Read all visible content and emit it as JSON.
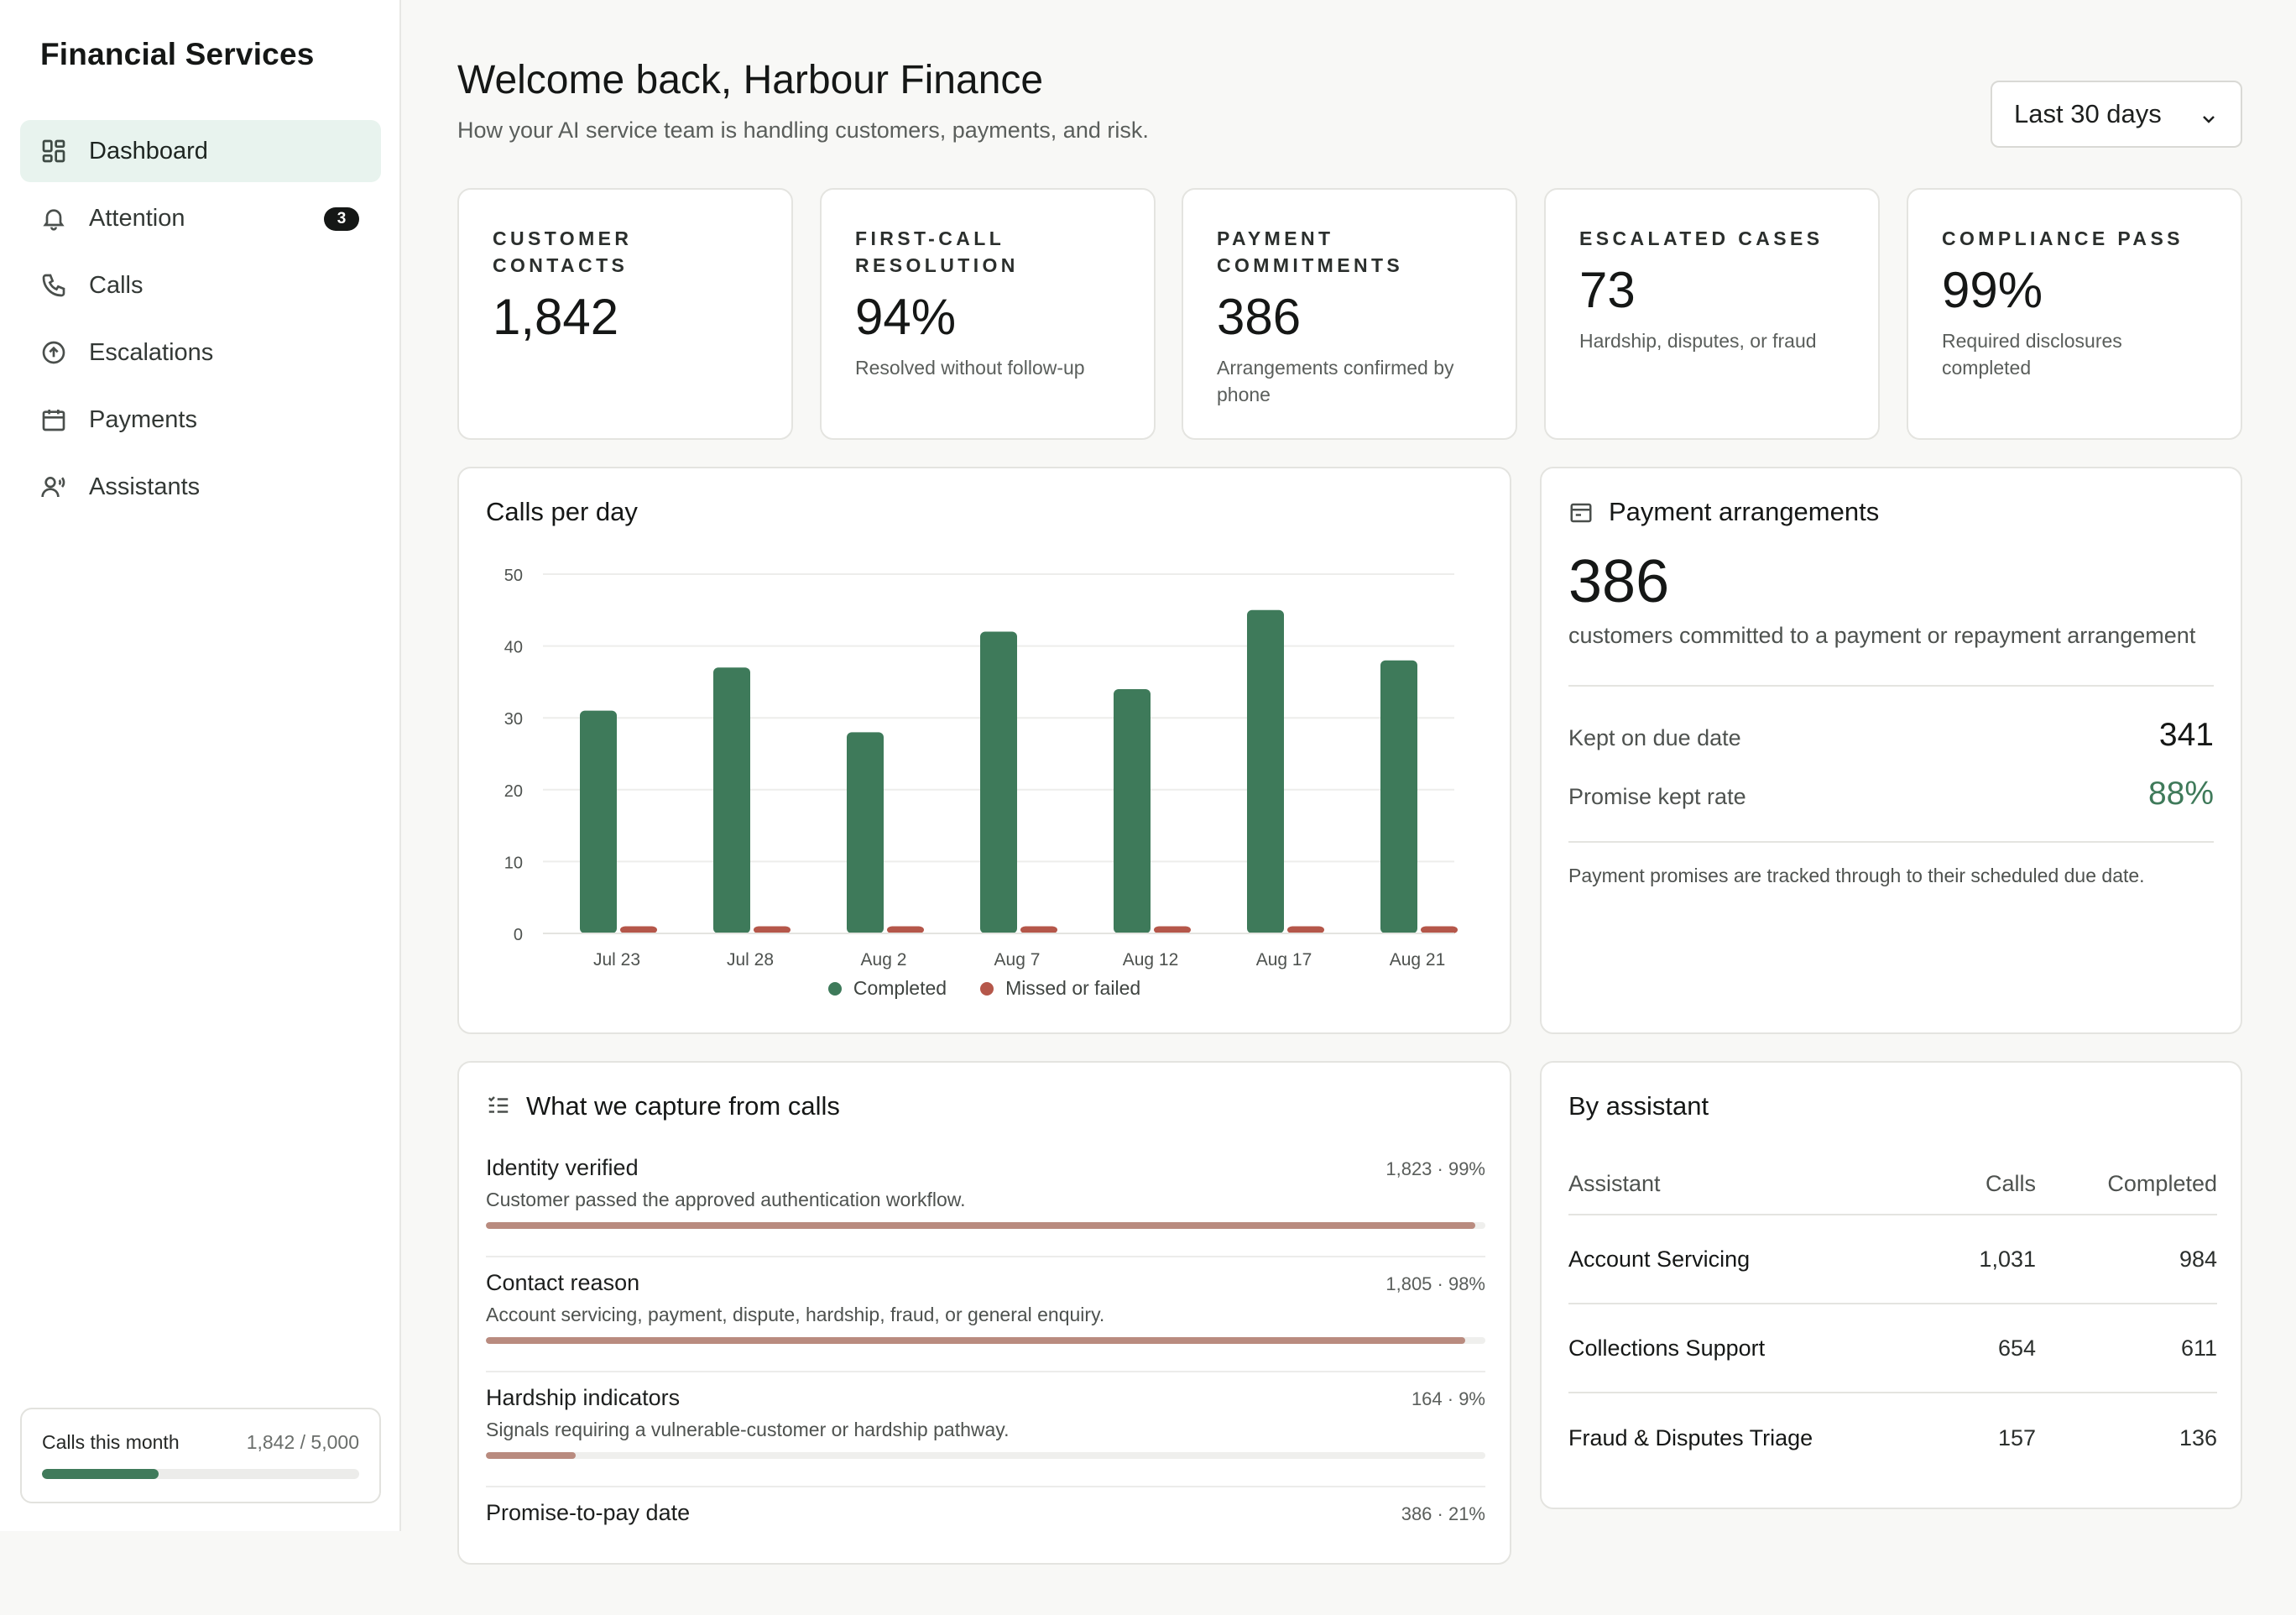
{
  "sidebar": {
    "brand": "Financial Services",
    "items": [
      {
        "label": "Dashboard",
        "icon": "dashboard-icon",
        "active": true
      },
      {
        "label": "Attention",
        "icon": "bell-icon",
        "badge": "3"
      },
      {
        "label": "Calls",
        "icon": "phone-icon"
      },
      {
        "label": "Escalations",
        "icon": "arrow-up-circle-icon"
      },
      {
        "label": "Payments",
        "icon": "calendar-icon"
      },
      {
        "label": "Assistants",
        "icon": "assistant-voice-icon"
      }
    ],
    "usage": {
      "label": "Calls this month",
      "value": "1,842 / 5,000",
      "fraction": 0.3684
    }
  },
  "header": {
    "title": "Welcome back, Harbour Finance",
    "subtitle": "How your AI service team is handling customers, payments, and risk.",
    "range": {
      "selected": "Last 30 days"
    }
  },
  "stats": [
    {
      "label": "Customer Contacts",
      "value": "1,842",
      "note": ""
    },
    {
      "label": "First-Call Resolution",
      "value": "94%",
      "note": "Resolved without follow-up"
    },
    {
      "label": "Payment Commitments",
      "value": "386",
      "note": "Arrangements confirmed by phone"
    },
    {
      "label": "Escalated Cases",
      "value": "73",
      "note": "Hardship, disputes, or fraud"
    },
    {
      "label": "Compliance Pass",
      "value": "99%",
      "note": "Required disclosures completed"
    }
  ],
  "calls_chart": {
    "title": "Calls per day"
  },
  "chart_data": {
    "type": "bar",
    "title": "Calls per day",
    "categories": [
      "Jul 23",
      "Jul 28",
      "Aug 2",
      "Aug 7",
      "Aug 12",
      "Aug 17",
      "Aug 21"
    ],
    "series": [
      {
        "name": "Completed",
        "color": "#3e7a5a",
        "values": [
          31,
          37,
          28,
          42,
          34,
          45,
          38
        ]
      },
      {
        "name": "Missed or failed",
        "color": "#b5574a",
        "values": [
          1,
          1,
          1,
          1,
          1,
          1,
          1
        ]
      }
    ],
    "yticks": [
      0,
      10,
      20,
      30,
      40,
      50
    ],
    "ylim": [
      0,
      50
    ],
    "grid": true,
    "legend": "bottom"
  },
  "payments": {
    "title": "Payment arrangements",
    "total": "386",
    "description": "customers committed to a payment or repayment arrangement",
    "rows": [
      {
        "label": "Kept on due date",
        "value": "341"
      },
      {
        "label": "Promise kept rate",
        "value": "88%"
      }
    ],
    "footnote": "Payment promises are tracked through to their scheduled due date."
  },
  "capture": {
    "title": "What we capture from calls",
    "items": [
      {
        "name": "Identity verified",
        "stat": "1,823 · 99%",
        "desc": "Customer passed the approved authentication workflow.",
        "fraction": 0.99
      },
      {
        "name": "Contact reason",
        "stat": "1,805 · 98%",
        "desc": "Account servicing, payment, dispute, hardship, fraud, or general enquiry.",
        "fraction": 0.98
      },
      {
        "name": "Hardship indicators",
        "stat": "164 · 9%",
        "desc": "Signals requiring a vulnerable-customer or hardship pathway.",
        "fraction": 0.09
      },
      {
        "name": "Promise-to-pay date",
        "stat": "386 · 21%",
        "desc": "",
        "fraction": 0.21
      }
    ]
  },
  "assistants": {
    "title": "By assistant",
    "columns": [
      "Assistant",
      "Calls",
      "Completed"
    ],
    "rows": [
      {
        "name": "Account Servicing",
        "calls": "1,031",
        "completed": "984"
      },
      {
        "name": "Collections Support",
        "calls": "654",
        "completed": "611"
      },
      {
        "name": "Fraud & Disputes Triage",
        "calls": "157",
        "completed": "136"
      }
    ]
  }
}
